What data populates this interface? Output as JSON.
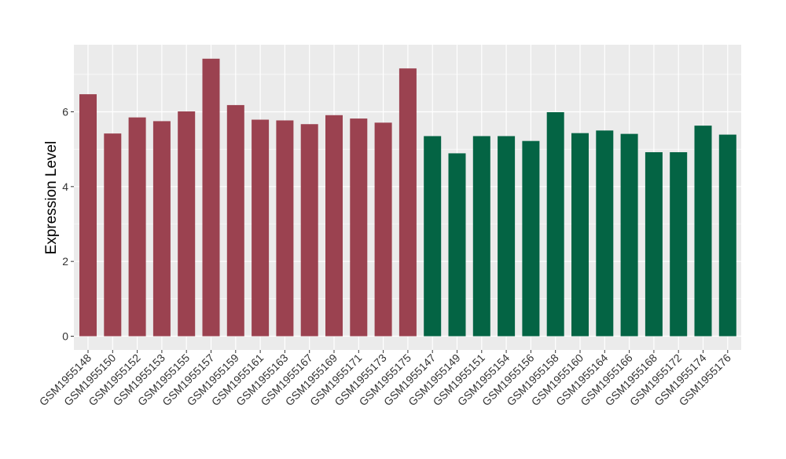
{
  "chart_data": {
    "type": "bar",
    "title": "",
    "xlabel": "",
    "ylabel": "Expression Level",
    "ylim": [
      0,
      7.7
    ],
    "yticks": [
      0,
      2,
      4,
      6
    ],
    "grid": true,
    "legend": "none",
    "colors": {
      "group1": "#9b4250",
      "group2": "#046444",
      "panel": "#ebebeb",
      "grid": "#ffffff"
    },
    "categories": [
      "GSM1955148",
      "GSM1955150",
      "GSM1955152",
      "GSM1955153",
      "GSM1955155",
      "GSM1955157",
      "GSM1955159",
      "GSM1955161",
      "GSM1955163",
      "GSM1955167",
      "GSM1955169",
      "GSM1955171",
      "GSM1955173",
      "GSM1955175",
      "GSM1955147",
      "GSM1955149",
      "GSM1955151",
      "GSM1955154",
      "GSM1955156",
      "GSM1955158",
      "GSM1955160",
      "GSM1955164",
      "GSM1955166",
      "GSM1955168",
      "GSM1955172",
      "GSM1955174",
      "GSM1955176"
    ],
    "values": [
      6.47,
      5.42,
      5.85,
      5.75,
      6.01,
      7.42,
      6.18,
      5.79,
      5.77,
      5.67,
      5.91,
      5.82,
      5.71,
      7.16,
      5.35,
      4.89,
      5.35,
      5.35,
      5.22,
      5.99,
      5.43,
      5.5,
      5.41,
      4.92,
      4.92,
      5.63,
      5.39
    ],
    "groups": [
      "group1",
      "group1",
      "group1",
      "group1",
      "group1",
      "group1",
      "group1",
      "group1",
      "group1",
      "group1",
      "group1",
      "group1",
      "group1",
      "group1",
      "group2",
      "group2",
      "group2",
      "group2",
      "group2",
      "group2",
      "group2",
      "group2",
      "group2",
      "group2",
      "group2",
      "group2",
      "group2"
    ]
  }
}
